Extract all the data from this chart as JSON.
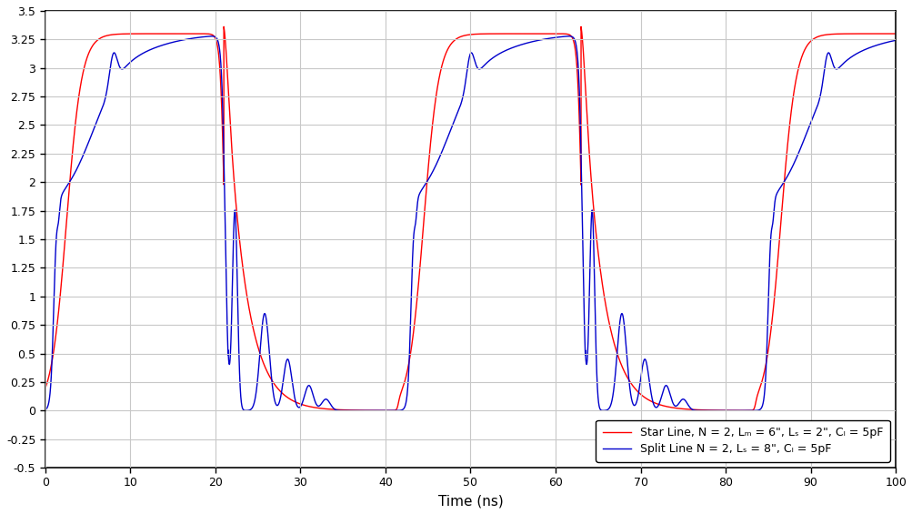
{
  "xlabel": "Time (ns)",
  "xlim": [
    0,
    100
  ],
  "ylim": [
    -0.5,
    3.5
  ],
  "ytick_labels": [
    "-0.5",
    "-0.25",
    "0",
    "0.25",
    "0.5",
    "0.75",
    "1",
    "1.25",
    "1.5",
    "1.75",
    "2",
    "2.25",
    "2.5",
    "2.75",
    "3",
    "3.25",
    "3.5"
  ],
  "ytick_vals": [
    -0.5,
    -0.25,
    0.0,
    0.25,
    0.5,
    0.75,
    1.0,
    1.25,
    1.5,
    1.75,
    2.0,
    2.25,
    2.5,
    2.75,
    3.0,
    3.25,
    3.5
  ],
  "xticks": [
    0,
    10,
    20,
    30,
    40,
    50,
    60,
    70,
    80,
    90,
    100
  ],
  "red_color": "#ff0000",
  "blue_color": "#0000cc",
  "background_color": "#ffffff",
  "grid_color": "#c8c8c8",
  "legend1": "Star Line, N = 2, Lₘ = 6\", Lₛ = 2\", Cₗ = 5pF",
  "legend2": "Split Line N = 2, Lₛ = 8\", Cₗ = 5pF",
  "vhigh": 3.3,
  "period": 42.0,
  "n_points": 100000
}
